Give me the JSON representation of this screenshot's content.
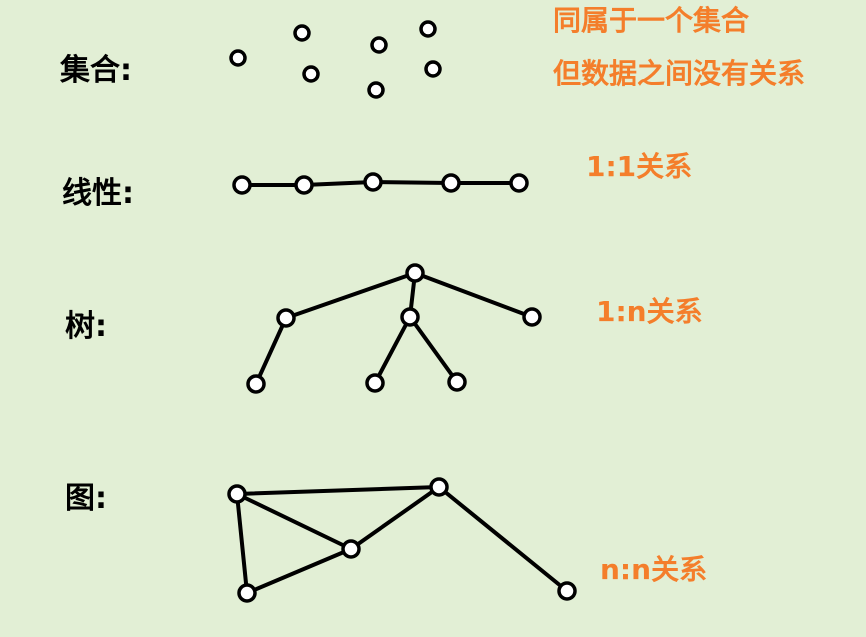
{
  "colors": {
    "background": "#e2efd5",
    "label": "#000000",
    "note": "#f47e2b",
    "stroke": "#000000",
    "node_fill": "#ffffff"
  },
  "sections": {
    "set": {
      "label": "集合:",
      "note_line1": "同属于一个集合",
      "note_line2": "但数据之间没有关系"
    },
    "linear": {
      "label": "线性:",
      "note": "1:1关系"
    },
    "tree": {
      "label": "树:",
      "note": "1:n关系"
    },
    "graph": {
      "label": "图:",
      "note": "n:n关系"
    }
  }
}
